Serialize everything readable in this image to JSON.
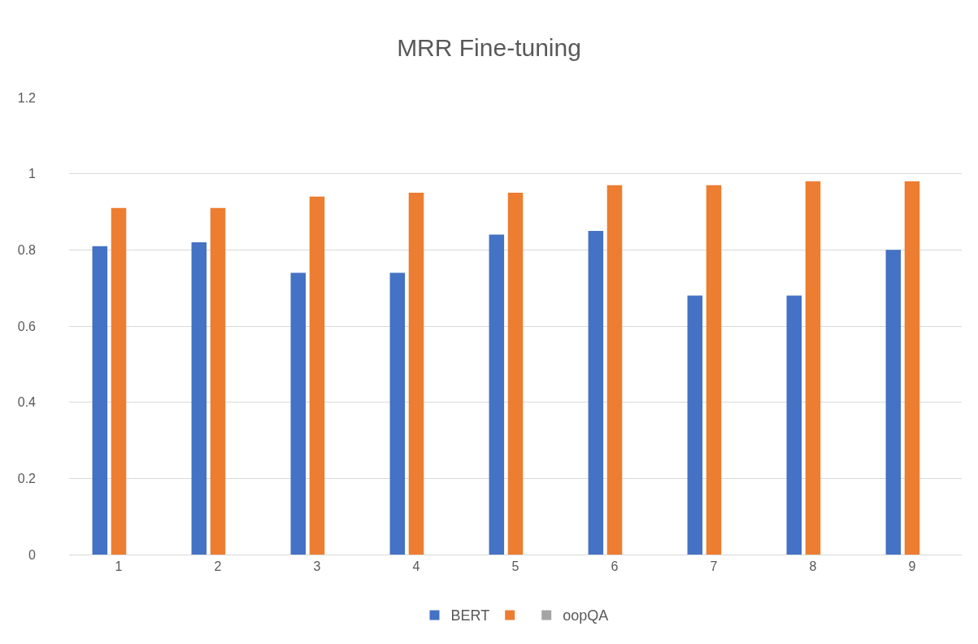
{
  "chart_data": {
    "type": "bar",
    "title": "MRR Fine-tuning",
    "categories": [
      "1",
      "2",
      "3",
      "4",
      "5",
      "6",
      "7",
      "8",
      "9"
    ],
    "series": [
      {
        "name": "BERT",
        "color": "#4472c4",
        "values": [
          0.81,
          0.82,
          0.74,
          0.74,
          0.84,
          0.85,
          0.68,
          0.68,
          0.8
        ]
      },
      {
        "color": "#ed7d31",
        "values": [
          0.91,
          0.91,
          0.94,
          0.95,
          0.95,
          0.97,
          0.97,
          0.98,
          0.98
        ]
      },
      {
        "name": "oopQA",
        "color": "#a5a5a5",
        "values": [
          null,
          null,
          null,
          null,
          null,
          null,
          null,
          null,
          null
        ]
      }
    ],
    "ylim": [
      0,
      1.2
    ],
    "yticks": [
      0,
      0.2,
      0.4,
      0.6,
      0.8,
      1,
      1.2
    ],
    "grid": "y",
    "legend": "bottom"
  }
}
